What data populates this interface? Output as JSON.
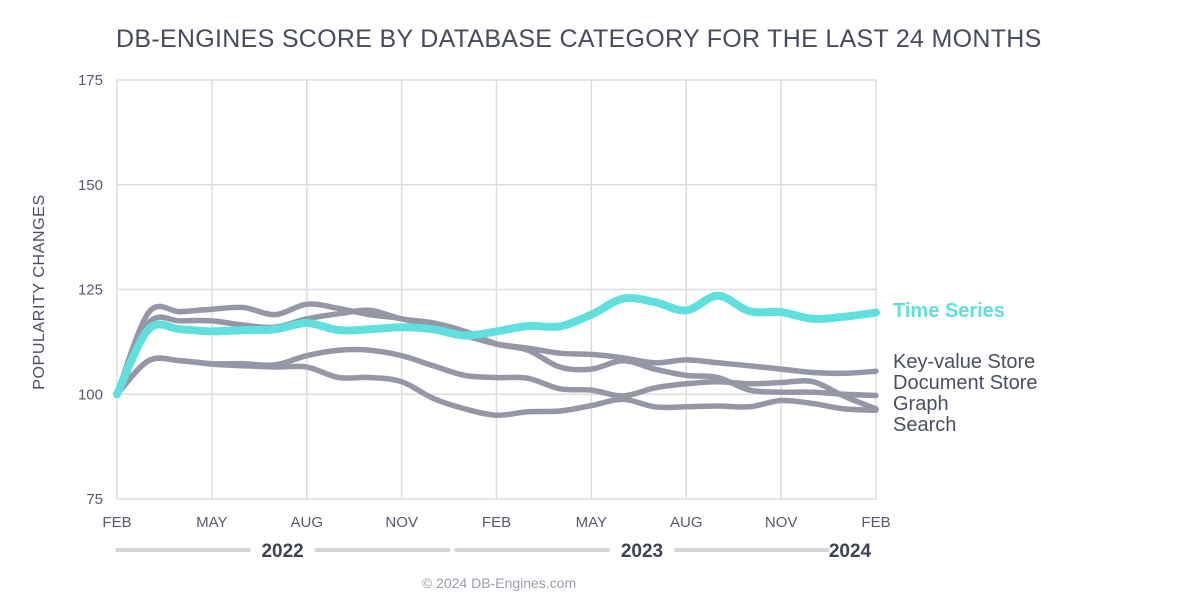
{
  "chart_data": {
    "type": "line",
    "title": "DB-ENGINES SCORE BY DATABASE CATEGORY FOR THE LAST 24 MONTHS",
    "ylabel": "POPULARITY CHANGES",
    "xlabel": "",
    "ylim": [
      75,
      175
    ],
    "yticks": [
      75,
      100,
      125,
      150,
      175
    ],
    "xlim": [
      0,
      24
    ],
    "xtick_labels": [
      "FEB",
      "MAY",
      "AUG",
      "NOV",
      "FEB",
      "MAY",
      "AUG",
      "NOV",
      "FEB"
    ],
    "xtick_positions": [
      0,
      3,
      6,
      9,
      12,
      15,
      18,
      21,
      24
    ],
    "years": [
      {
        "label": "2022",
        "start": 0,
        "end": 10.6
      },
      {
        "label": "2023",
        "start": 10.6,
        "end": 22.6
      },
      {
        "label": "2024",
        "start": 22.6,
        "end": 24
      }
    ],
    "grid": true,
    "legend_position": "right-end",
    "series": [
      {
        "name": "Key-value Store",
        "color": "#9597a6",
        "highlight": false,
        "x": [
          0,
          1,
          2,
          3,
          4,
          5,
          6,
          7,
          8,
          9,
          10,
          11,
          12,
          13,
          14,
          15,
          16,
          17,
          18,
          19,
          20,
          21,
          22,
          23,
          24
        ],
        "y": [
          100,
          119.5,
          119.7,
          120.3,
          120.7,
          119,
          121.5,
          120.5,
          119,
          118,
          116,
          114,
          112,
          111,
          109.8,
          109.5,
          108.7,
          107.5,
          108.2,
          107.5,
          106.8,
          106,
          105.2,
          105,
          105.5
        ]
      },
      {
        "name": "Document Store",
        "color": "#9597a6",
        "highlight": false,
        "x": [
          0,
          1,
          2,
          3,
          4,
          5,
          6,
          7,
          8,
          9,
          10,
          11,
          12,
          13,
          14,
          15,
          16,
          17,
          18,
          19,
          20,
          21,
          22,
          23,
          24
        ],
        "y": [
          100,
          117,
          117.5,
          117.5,
          116.5,
          116,
          118,
          119.2,
          120,
          118,
          117,
          115,
          112,
          110.5,
          106.5,
          106,
          108,
          106,
          104.5,
          104,
          101,
          100.5,
          100.5,
          100,
          99.7
        ]
      },
      {
        "name": "Graph",
        "color": "#9597a6",
        "highlight": false,
        "x": [
          0,
          1,
          2,
          3,
          4,
          5,
          6,
          7,
          8,
          9,
          10,
          11,
          12,
          13,
          14,
          15,
          16,
          17,
          18,
          19,
          20,
          21,
          22,
          23,
          24
        ],
        "y": [
          100,
          108,
          108,
          107.3,
          107.3,
          107,
          109.2,
          110.5,
          110.5,
          109.2,
          106.8,
          104.5,
          104,
          103.8,
          101.3,
          101,
          99.6,
          101.5,
          102.5,
          103,
          102.5,
          102.8,
          103,
          99.5,
          96.5
        ]
      },
      {
        "name": "Search",
        "color": "#9597a6",
        "highlight": false,
        "x": [
          0,
          1,
          2,
          3,
          4,
          5,
          6,
          7,
          8,
          9,
          10,
          11,
          12,
          13,
          14,
          15,
          16,
          17,
          18,
          19,
          20,
          21,
          22,
          23,
          24
        ],
        "y": [
          100,
          108,
          108,
          107.2,
          106.8,
          106.5,
          106.5,
          104,
          104,
          103,
          99,
          96.5,
          95,
          95.8,
          96,
          97.3,
          98.8,
          97,
          97,
          97.2,
          97,
          98.5,
          97.8,
          96.5,
          96.2
        ]
      },
      {
        "name": "Time Series",
        "color": "#5fe0de",
        "highlight": true,
        "x": [
          0,
          1,
          2,
          3,
          4,
          5,
          6,
          7,
          8,
          9,
          10,
          11,
          12,
          13,
          14,
          15,
          16,
          17,
          18,
          19,
          20,
          21,
          22,
          23,
          24
        ],
        "y": [
          100,
          115.5,
          115.5,
          115,
          115.3,
          115.5,
          117,
          115.3,
          115.5,
          116,
          115.5,
          114,
          115,
          116.3,
          116.2,
          119,
          122.8,
          122,
          120,
          123.5,
          119.8,
          119.6,
          118,
          118.5,
          119.5
        ]
      }
    ],
    "legend_order": [
      "Time Series",
      "Key-value Store",
      "Document Store",
      "Graph",
      "Search"
    ]
  },
  "footer": {
    "credit": "© 2024 DB-Engines.com"
  },
  "colors": {
    "grid": "#dcdde3",
    "text": "#4a4e62",
    "highlight": "#5fe0de",
    "muted": "#9597a6",
    "year_bar": "#d3d4da"
  }
}
